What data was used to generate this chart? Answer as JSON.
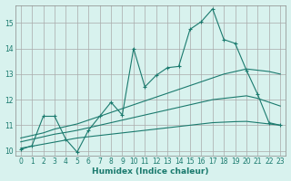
{
  "xlabel": "Humidex (Indice chaleur)",
  "xlim": [
    -0.5,
    23.5
  ],
  "ylim": [
    9.8,
    15.7
  ],
  "yticks": [
    10,
    11,
    12,
    13,
    14,
    15
  ],
  "xticks": [
    0,
    1,
    2,
    3,
    4,
    5,
    6,
    7,
    8,
    9,
    10,
    11,
    12,
    13,
    14,
    15,
    16,
    17,
    18,
    19,
    20,
    21,
    22,
    23
  ],
  "bg_color": "#d8f2ee",
  "line_color": "#1a7a6e",
  "grid_color": "#aaaaaa",
  "line1_x": [
    0,
    1,
    2,
    3,
    4,
    5,
    6,
    7,
    8,
    9,
    10,
    11,
    12,
    13,
    14,
    15,
    16,
    17,
    18,
    19,
    20,
    21,
    22,
    23
  ],
  "line1_y": [
    10.05,
    10.2,
    11.35,
    11.35,
    10.45,
    9.95,
    10.8,
    11.35,
    11.9,
    11.4,
    14.0,
    12.5,
    12.95,
    13.25,
    13.3,
    14.75,
    15.05,
    15.55,
    14.35,
    14.2,
    13.15,
    12.2,
    11.1,
    11.0
  ],
  "smooth_upper_x": [
    0,
    1,
    2,
    3,
    4,
    5,
    6,
    7,
    8,
    9,
    10,
    11,
    12,
    13,
    14,
    15,
    16,
    17,
    18,
    19,
    20,
    21,
    22,
    23
  ],
  "smooth_upper_y": [
    10.5,
    10.6,
    10.7,
    10.85,
    10.95,
    11.05,
    11.2,
    11.35,
    11.5,
    11.65,
    11.8,
    11.95,
    12.1,
    12.25,
    12.4,
    12.55,
    12.7,
    12.85,
    13.0,
    13.1,
    13.2,
    13.15,
    13.1,
    13.0
  ],
  "smooth_mid_x": [
    0,
    1,
    2,
    3,
    4,
    5,
    6,
    7,
    8,
    9,
    10,
    11,
    12,
    13,
    14,
    15,
    16,
    17,
    18,
    19,
    20,
    21,
    22,
    23
  ],
  "smooth_mid_y": [
    10.35,
    10.45,
    10.55,
    10.65,
    10.72,
    10.8,
    10.9,
    11.0,
    11.1,
    11.2,
    11.3,
    11.4,
    11.5,
    11.6,
    11.7,
    11.8,
    11.9,
    12.0,
    12.05,
    12.1,
    12.15,
    12.05,
    11.9,
    11.75
  ],
  "smooth_low_x": [
    0,
    1,
    2,
    3,
    4,
    5,
    6,
    7,
    8,
    9,
    10,
    11,
    12,
    13,
    14,
    15,
    16,
    17,
    18,
    19,
    20,
    21,
    22,
    23
  ],
  "smooth_low_y": [
    10.1,
    10.18,
    10.26,
    10.34,
    10.42,
    10.5,
    10.55,
    10.6,
    10.65,
    10.7,
    10.75,
    10.8,
    10.85,
    10.9,
    10.95,
    11.0,
    11.05,
    11.1,
    11.12,
    11.14,
    11.15,
    11.1,
    11.05,
    11.0
  ]
}
